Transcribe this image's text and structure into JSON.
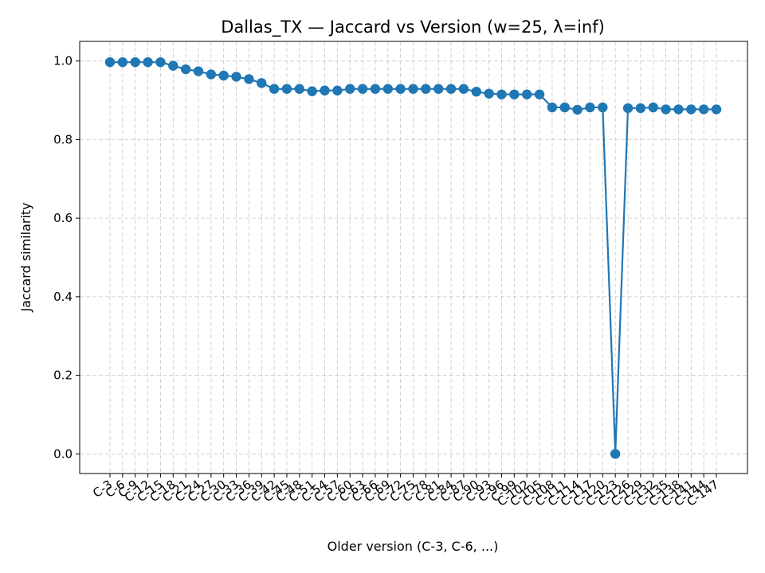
{
  "chart_data": {
    "type": "line",
    "title": "Dallas_TX — Jaccard vs Version (w=25, λ=inf)",
    "xlabel": "Older version (C-3, C-6, ...)",
    "ylabel": "Jaccard similarity",
    "ylim": [
      -0.05,
      1.05
    ],
    "yticks": [
      0.0,
      0.2,
      0.4,
      0.6,
      0.8,
      1.0
    ],
    "grid": true,
    "color": "#1f77b4",
    "categories": [
      "C-3",
      "C-6",
      "C-9",
      "C-12",
      "C-15",
      "C-18",
      "C-21",
      "C-24",
      "C-27",
      "C-30",
      "C-33",
      "C-36",
      "C-39",
      "C-42",
      "C-45",
      "C-48",
      "C-51",
      "C-54",
      "C-57",
      "C-60",
      "C-63",
      "C-66",
      "C-69",
      "C-72",
      "C-75",
      "C-78",
      "C-81",
      "C-84",
      "C-87",
      "C-90",
      "C-93",
      "C-96",
      "C-99",
      "C-102",
      "C-105",
      "C-108",
      "C-111",
      "C-114",
      "C-117",
      "C-120",
      "C-123",
      "C-126",
      "C-129",
      "C-132",
      "C-135",
      "C-138",
      "C-141",
      "C-144",
      "C-147"
    ],
    "values": [
      0.997,
      0.997,
      0.997,
      0.997,
      0.997,
      0.988,
      0.979,
      0.974,
      0.966,
      0.963,
      0.96,
      0.954,
      0.944,
      0.929,
      0.929,
      0.929,
      0.923,
      0.925,
      0.925,
      0.929,
      0.929,
      0.929,
      0.929,
      0.929,
      0.929,
      0.929,
      0.929,
      0.929,
      0.929,
      0.922,
      0.917,
      0.915,
      0.915,
      0.915,
      0.915,
      0.882,
      0.882,
      0.876,
      0.882,
      0.882,
      0.0,
      0.88,
      0.88,
      0.882,
      0.877,
      0.877,
      0.877,
      0.877,
      0.877
    ]
  }
}
